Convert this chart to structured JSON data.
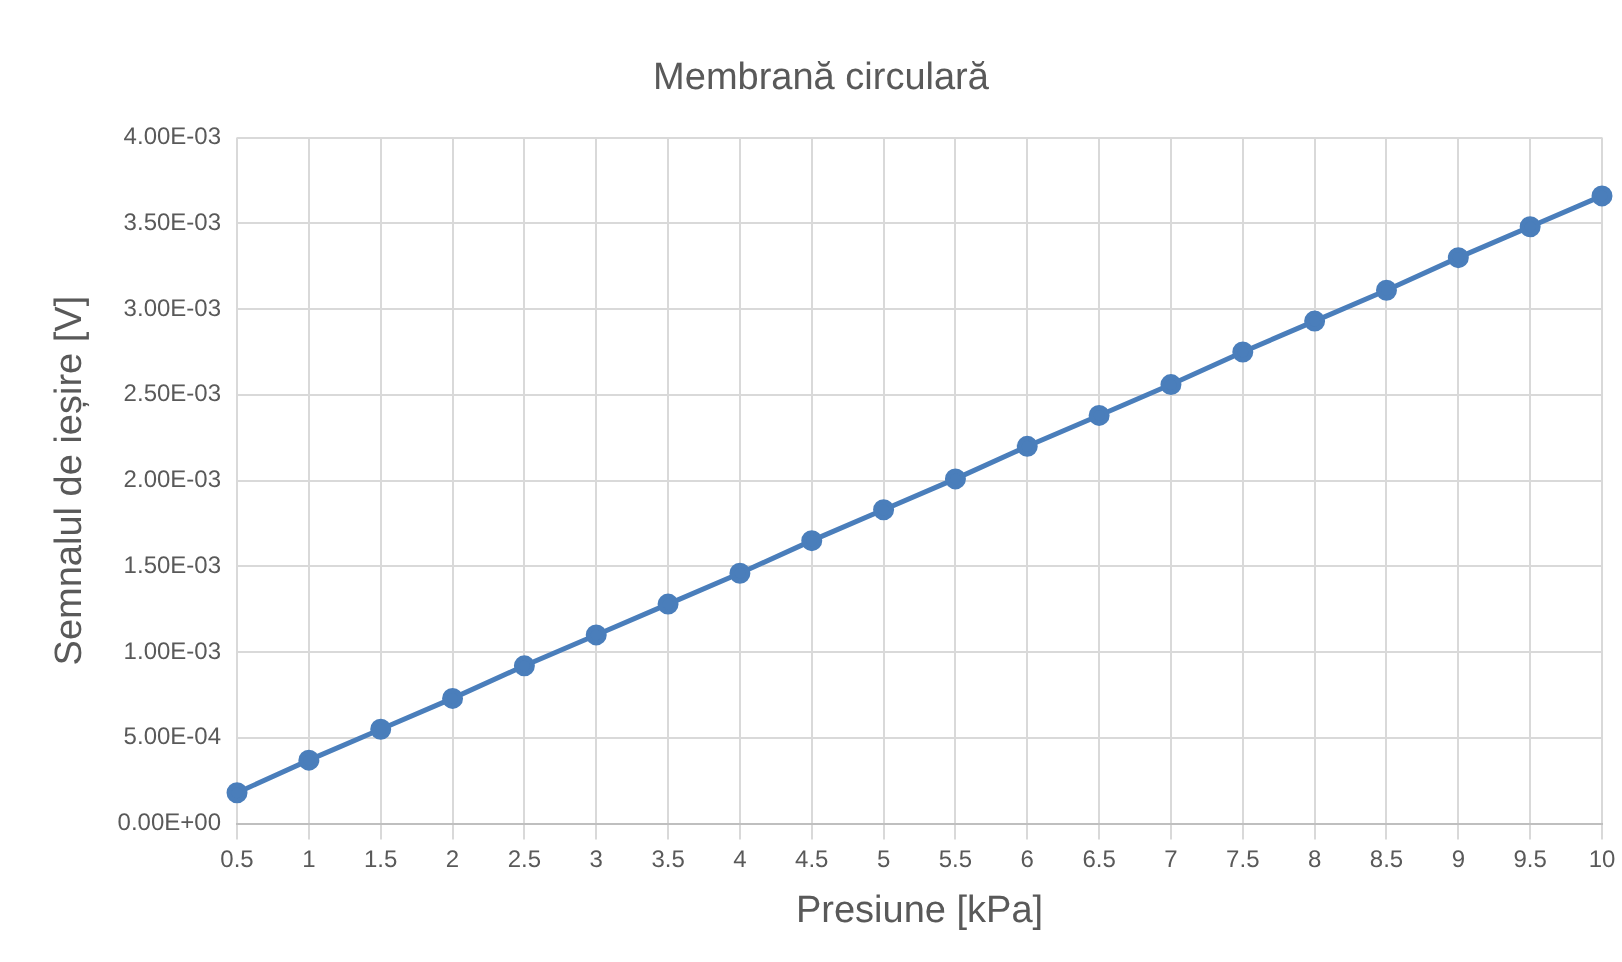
{
  "chart_data": {
    "type": "line",
    "title": "Membrană circulară",
    "xlabel": "Presiune [kPa]",
    "ylabel": "Semnalul de ieșire [V]",
    "categories": [
      "0.5",
      "1",
      "1.5",
      "2",
      "2.5",
      "3",
      "3.5",
      "4",
      "4.5",
      "5",
      "5.5",
      "6",
      "6.5",
      "7",
      "7.5",
      "8",
      "8.5",
      "9",
      "9.5",
      "10"
    ],
    "series": [
      {
        "color": "#4a7ebb",
        "values": [
          0.00018,
          0.00037,
          0.00055,
          0.00073,
          0.00092,
          0.0011,
          0.00128,
          0.00146,
          0.00165,
          0.00183,
          0.00201,
          0.0022,
          0.00238,
          0.00256,
          0.00275,
          0.00293,
          0.00311,
          0.0033,
          0.00348,
          0.00366
        ]
      }
    ],
    "ylim": [
      0,
      0.004
    ],
    "yticks": [
      {
        "value": 0,
        "label": "0.00E+00"
      },
      {
        "value": 0.0005,
        "label": "5.00E-04"
      },
      {
        "value": 0.001,
        "label": "1.00E-03"
      },
      {
        "value": 0.0015,
        "label": "1.50E-03"
      },
      {
        "value": 0.002,
        "label": "2.00E-03"
      },
      {
        "value": 0.0025,
        "label": "2.50E-03"
      },
      {
        "value": 0.003,
        "label": "3.00E-03"
      },
      {
        "value": 0.0035,
        "label": "3.50E-03"
      },
      {
        "value": 0.004,
        "label": "4.00E-03"
      }
    ],
    "grid": true,
    "legend": false,
    "marker": "circle",
    "line_style": "solid"
  }
}
